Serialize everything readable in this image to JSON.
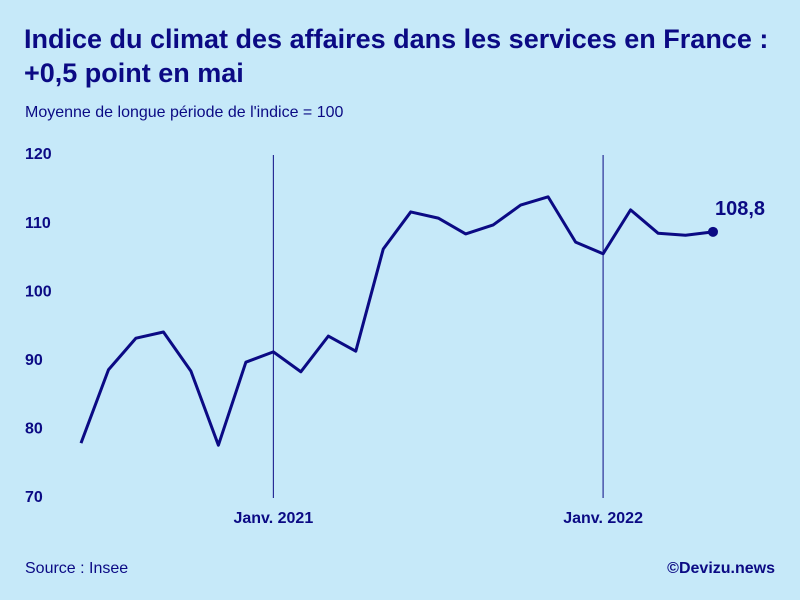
{
  "chart_data": {
    "type": "line",
    "title": "Indice du climat des affaires dans les services en France : +0,5 point en mai",
    "subtitle": "Moyenne de longue période de l'indice = 100",
    "source": "Source : Insee",
    "credit": "©Devizu.news",
    "categories": [
      null,
      null,
      null,
      null,
      null,
      null,
      null,
      "Janv. 2021",
      null,
      null,
      null,
      null,
      null,
      null,
      null,
      null,
      null,
      null,
      null,
      "Janv. 2022",
      null,
      null,
      null,
      null
    ],
    "values": [
      78,
      88.7,
      93.3,
      94.2,
      88.5,
      77.7,
      89.8,
      91.3,
      88.4,
      93.6,
      91.4,
      106.3,
      111.7,
      110.8,
      108.5,
      109.8,
      112.7,
      113.9,
      107.3,
      105.6,
      112,
      108.6,
      108.3,
      108.8
    ],
    "value_labels": [
      null,
      null,
      null,
      null,
      null,
      null,
      null,
      null,
      null,
      null,
      null,
      null,
      null,
      null,
      null,
      null,
      null,
      null,
      null,
      null,
      null,
      null,
      null,
      "108,8"
    ],
    "color": "#0b0a84",
    "ylim": [
      70,
      120
    ],
    "yticks": [
      70,
      80,
      90,
      100,
      110,
      120
    ],
    "grid": false
  }
}
